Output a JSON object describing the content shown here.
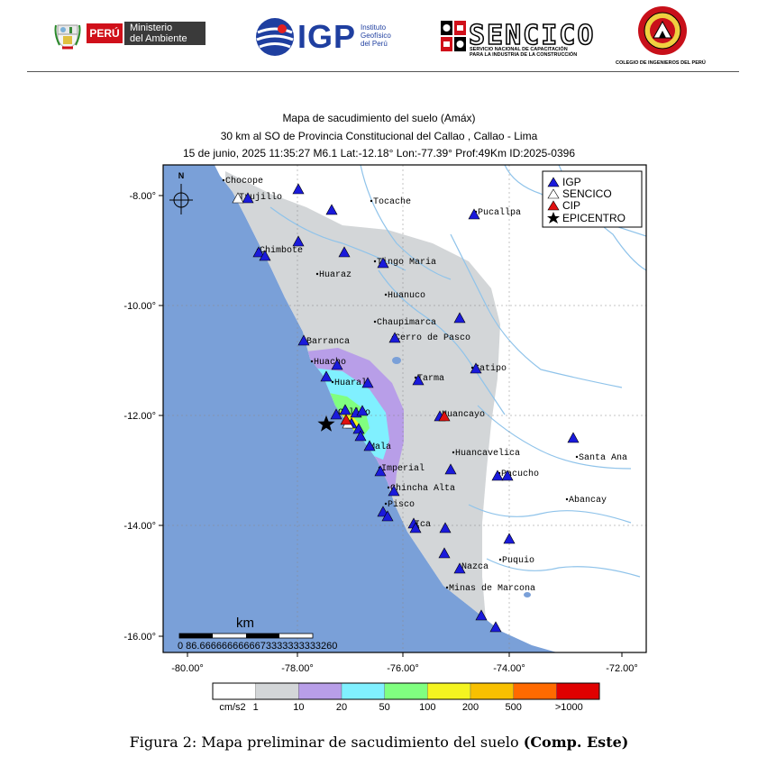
{
  "logos": {
    "peru_label": "PERÚ",
    "ministry_line1": "Ministerio",
    "ministry_line2": "del Ambiente",
    "igp_acronym": "IGP",
    "igp_sub1": "Instituto",
    "igp_sub2": "Geofísico",
    "igp_sub3": "del Perú",
    "sencico_acronym": "SENCICO",
    "sencico_sub1": "SERVICIO NACIONAL DE CAPACITACIÓN",
    "sencico_sub2": "PARA LA INDUSTRIA DE LA CONSTRUCCIÓN",
    "cip_name": "COLEGIO DE INGENIEROS DEL PERÚ"
  },
  "map": {
    "title_line1": "Mapa de sacudimiento del suelo (Amáx)",
    "title_line2": "30 km al SO de Provincia Constitucional del Callao , Callao - Lima",
    "title_line3": "15 de junio, 2025 11:35:27 M6.1 Lat:-12.18° Lon:-77.39° Prof:49Km ID:2025-0396",
    "north_label": "N",
    "lon_ticks": [
      "-80.00°",
      "-78.00°",
      "-76.00°",
      "-74.00°",
      "-72.00°"
    ],
    "lat_ticks": [
      "-8.00°",
      "-10.00°",
      "-12.00°",
      "-14.00°",
      "-16.00°"
    ],
    "scale": {
      "unit": "km",
      "labels": "0 86.6666666666673333333333260"
    },
    "legend": {
      "items": [
        {
          "label": "IGP",
          "color": "#1a1adb",
          "symbol": "triangle"
        },
        {
          "label": "SENCICO",
          "color": "#ffffff",
          "symbol": "triangle"
        },
        {
          "label": "CIP",
          "color": "#e01010",
          "symbol": "triangle"
        },
        {
          "label": "EPICENTRO",
          "color": "#000000",
          "symbol": "star"
        }
      ]
    },
    "cities": [
      "Chocope",
      "Trujillo",
      "Tocache",
      "Pucallpa",
      "Chimbote",
      "Tingo Maria",
      "Huaraz",
      "Huanuco",
      "Chaupimarca",
      "Cerro de Pasco",
      "Barranca",
      "Huacho",
      "Huaral",
      "Satipo",
      "Tarma",
      "Callao",
      "Huancayo",
      "Mala",
      "Huancavelica",
      "Santa Ana",
      "Pacucho",
      "Imperial",
      "Chincha Alta",
      "Abancay",
      "Pisco",
      "Ica",
      "Puquio",
      "Nazca",
      "Minas de Marcona"
    ],
    "colorbar": {
      "unit": "cm/s2",
      "tick_labels": [
        "1",
        "10",
        "20",
        "50",
        "100",
        "200",
        "500",
        ">1000"
      ],
      "colors": [
        "#ffffff",
        "#d3d6d8",
        "#b89ee8",
        "#80f0ff",
        "#80ff80",
        "#f4f420",
        "#f8c000",
        "#ff6a00",
        "#e00000"
      ]
    }
  },
  "caption": {
    "prefix": "Figura 2: Mapa preliminar de sacudimiento del suelo",
    "bold": "(Comp. Este)"
  }
}
